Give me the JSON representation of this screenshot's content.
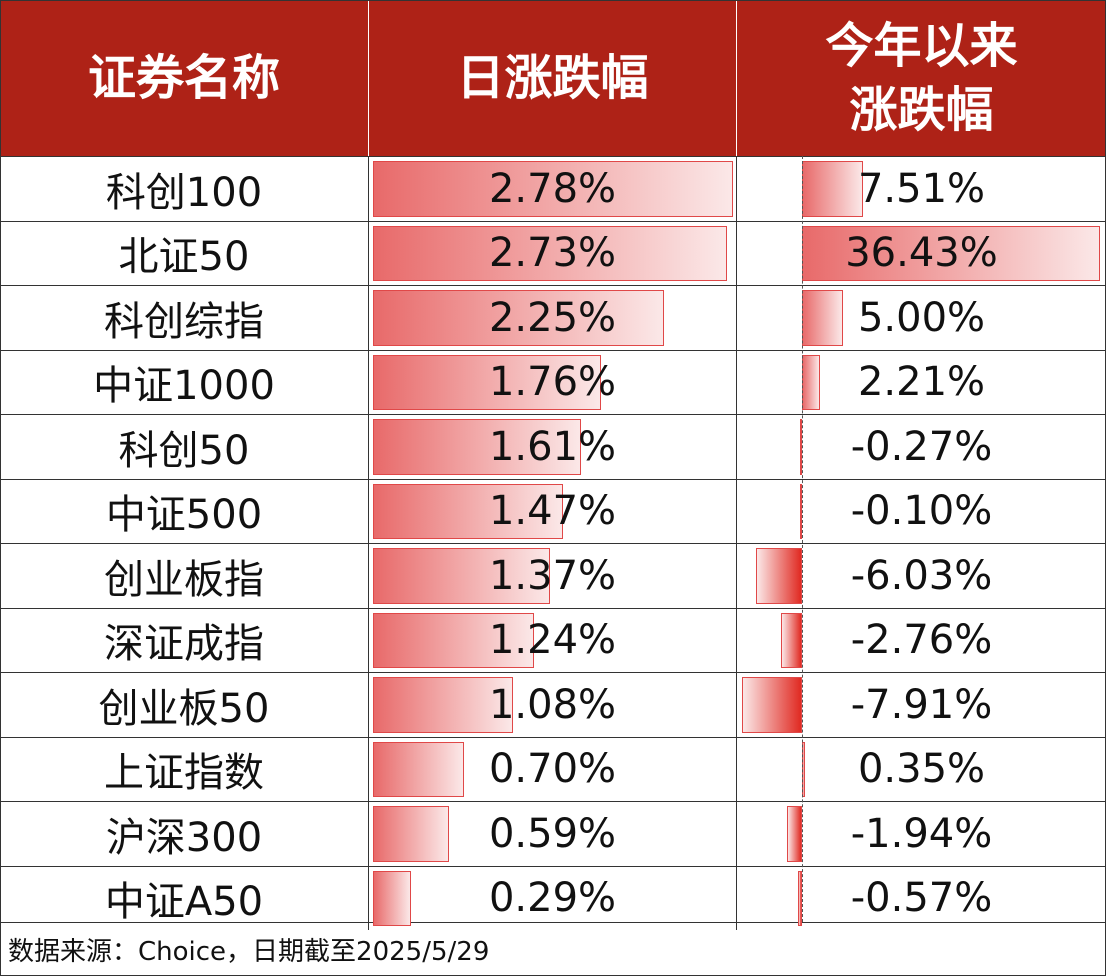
{
  "header": {
    "col_name": "证券名称",
    "col_daily": "日涨跌幅",
    "col_ytd": "今年以来\n涨跌幅"
  },
  "rows": [
    {
      "name": "科创100",
      "daily": "2.78%",
      "ytd": "7.51%",
      "daily_value": 2.78,
      "ytd_value": 7.51
    },
    {
      "name": "北证50",
      "daily": "2.73%",
      "ytd": "36.43%",
      "daily_value": 2.73,
      "ytd_value": 36.43
    },
    {
      "name": "科创综指",
      "daily": "2.25%",
      "ytd": "5.00%",
      "daily_value": 2.25,
      "ytd_value": 5.0
    },
    {
      "name": "中证1000",
      "daily": "1.76%",
      "ytd": "2.21%",
      "daily_value": 1.76,
      "ytd_value": 2.21
    },
    {
      "name": "科创50",
      "daily": "1.61%",
      "ytd": "-0.27%",
      "daily_value": 1.61,
      "ytd_value": -0.27
    },
    {
      "name": "中证500",
      "daily": "1.47%",
      "ytd": "-0.10%",
      "daily_value": 1.47,
      "ytd_value": -0.1
    },
    {
      "name": "创业板指",
      "daily": "1.37%",
      "ytd": "-6.03%",
      "daily_value": 1.37,
      "ytd_value": -6.03
    },
    {
      "name": "深证成指",
      "daily": "1.24%",
      "ytd": "-2.76%",
      "daily_value": 1.24,
      "ytd_value": -2.76
    },
    {
      "name": "创业板50",
      "daily": "1.08%",
      "ytd": "-7.91%",
      "daily_value": 1.08,
      "ytd_value": -7.91
    },
    {
      "name": "上证指数",
      "daily": "0.70%",
      "ytd": "0.35%",
      "daily_value": 0.7,
      "ytd_value": 0.35
    },
    {
      "name": "沪深300",
      "daily": "0.59%",
      "ytd": "-1.94%",
      "daily_value": 0.59,
      "ytd_value": -1.94
    },
    {
      "name": "中证A50",
      "daily": "0.29%",
      "ytd": "-0.57%",
      "daily_value": 0.29,
      "ytd_value": -0.57
    }
  ],
  "footer": {
    "source": "数据来源：Choice，日期截至2025/5/29"
  },
  "colors": {
    "header_bg": "#ae2217",
    "bar_pos": "#e86a6a",
    "bar_neg": "#e02a22"
  }
}
